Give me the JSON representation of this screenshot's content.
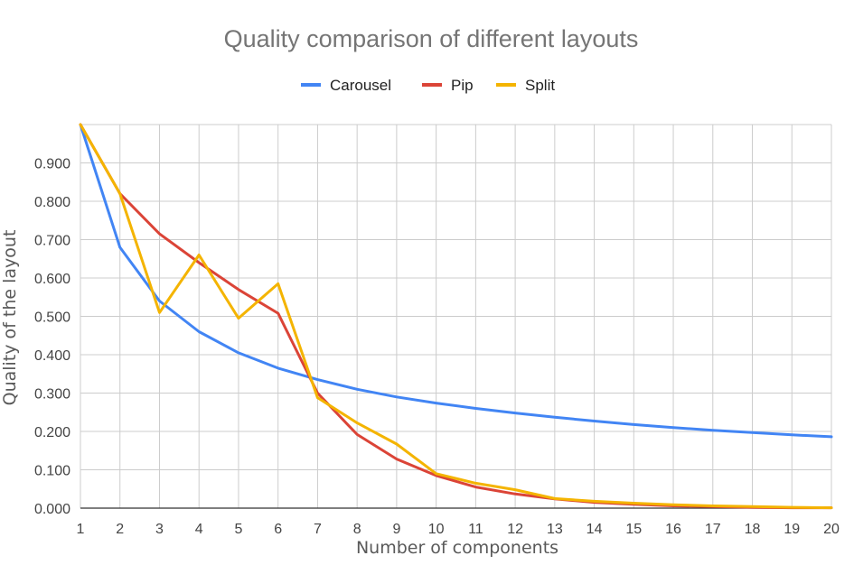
{
  "chart_data": {
    "type": "line",
    "title": "Quality comparison of different layouts",
    "xlabel": "Number of components",
    "ylabel": "Quality of the layout",
    "x": [
      1,
      2,
      3,
      4,
      5,
      6,
      7,
      8,
      9,
      10,
      11,
      12,
      13,
      14,
      15,
      16,
      17,
      18,
      19,
      20
    ],
    "xlim": [
      1,
      20
    ],
    "ylim": [
      0,
      1
    ],
    "yticks": [
      "0.000",
      "0.100",
      "0.200",
      "0.300",
      "0.400",
      "0.500",
      "0.600",
      "0.700",
      "0.800",
      "0.900"
    ],
    "xticks": [
      "1",
      "2",
      "3",
      "4",
      "5",
      "6",
      "7",
      "8",
      "9",
      "10",
      "11",
      "12",
      "13",
      "14",
      "15",
      "16",
      "17",
      "18",
      "19",
      "20"
    ],
    "grid": true,
    "legend_position": "top-center",
    "series": [
      {
        "name": "Carousel",
        "color": "#4285f4",
        "values": [
          1.0,
          0.68,
          0.54,
          0.46,
          0.405,
          0.365,
          0.335,
          0.31,
          0.29,
          0.274,
          0.26,
          0.248,
          0.237,
          0.227,
          0.218,
          0.21,
          0.203,
          0.197,
          0.191,
          0.186
        ]
      },
      {
        "name": "Pip",
        "color": "#db4437",
        "values": [
          1.0,
          0.82,
          0.715,
          0.64,
          0.57,
          0.508,
          0.3,
          0.192,
          0.128,
          0.085,
          0.055,
          0.037,
          0.024,
          0.015,
          0.01,
          0.006,
          0.004,
          0.002,
          0.001,
          0.001
        ]
      },
      {
        "name": "Split",
        "color": "#f4b400",
        "values": [
          1.0,
          0.82,
          0.51,
          0.66,
          0.495,
          0.585,
          0.288,
          0.222,
          0.167,
          0.09,
          0.065,
          0.048,
          0.025,
          0.018,
          0.013,
          0.009,
          0.006,
          0.004,
          0.002,
          0.001
        ]
      }
    ]
  }
}
